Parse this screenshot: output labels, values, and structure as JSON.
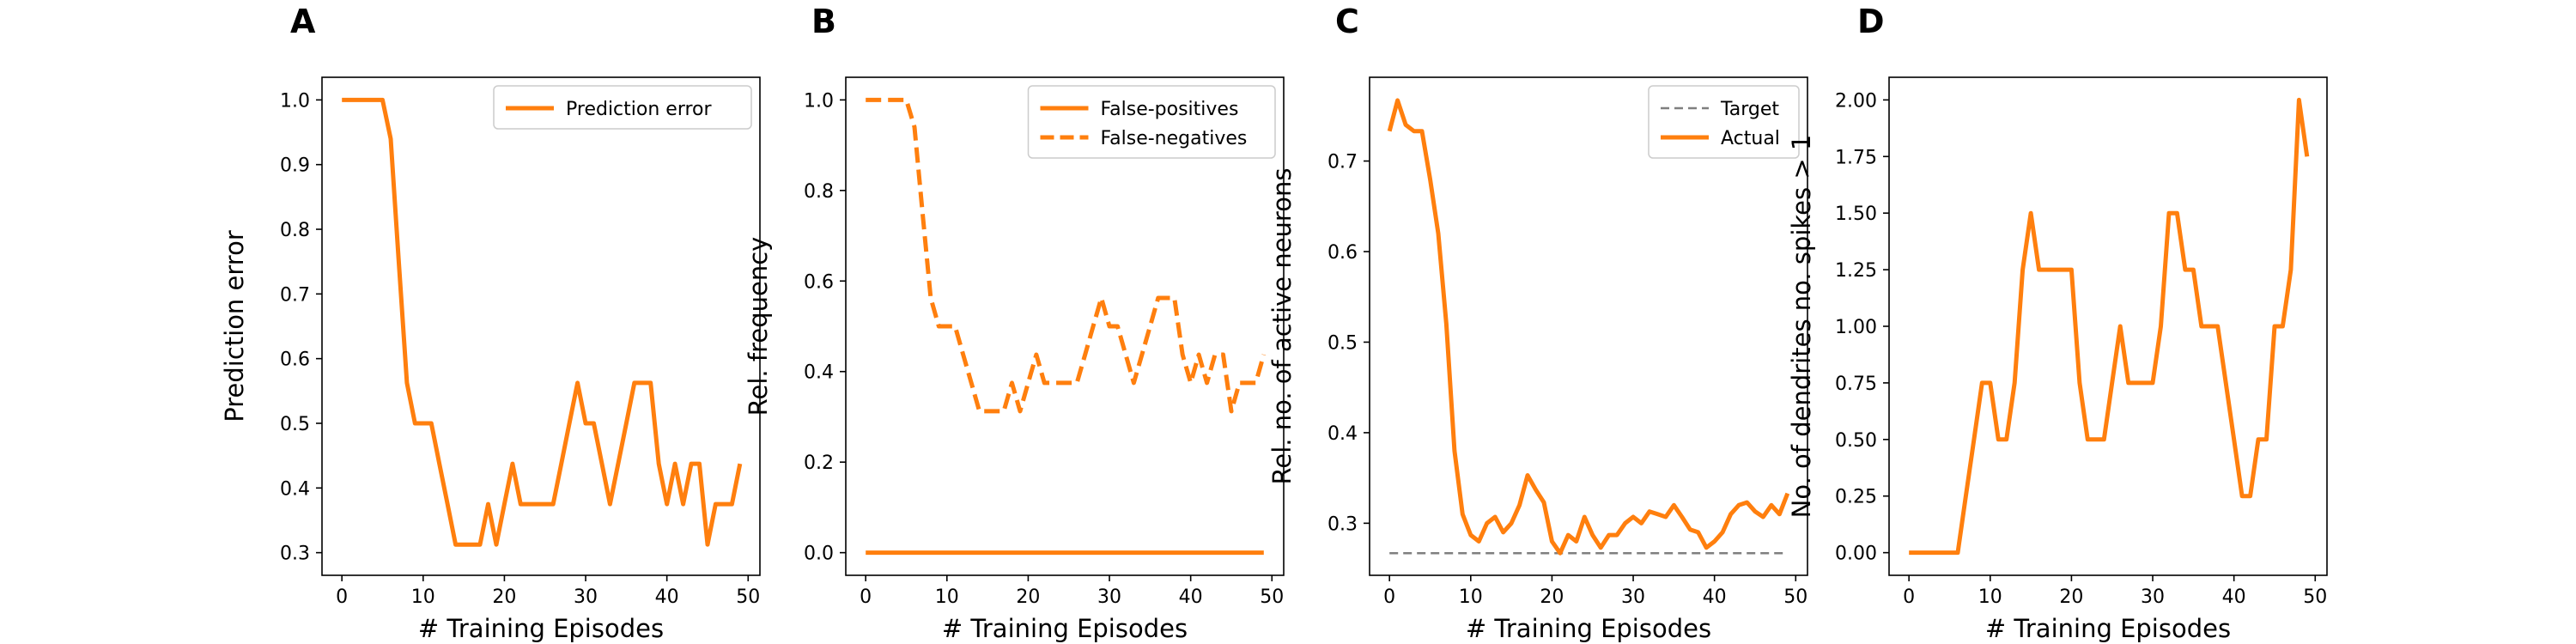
{
  "colors": {
    "series": "#ff7f0e",
    "target": "#7f7f7f"
  },
  "chart_data": [
    {
      "panel": "A",
      "type": "line",
      "xlabel": "# Training Episodes",
      "ylabel": "Prediction error",
      "xlim": [
        -2.45,
        51.45
      ],
      "ylim": [
        0.265,
        1.035
      ],
      "xticks": [
        0,
        10,
        20,
        30,
        40,
        50
      ],
      "yticks": [
        0.3,
        0.4,
        0.5,
        0.6,
        0.7,
        0.8,
        0.9,
        1.0
      ],
      "ytick_labels": [
        "0.3",
        "0.4",
        "0.5",
        "0.6",
        "0.7",
        "0.8",
        "0.9",
        "1.0"
      ],
      "legend_position": "upper right",
      "series": [
        {
          "name": "Prediction error",
          "style": "solid",
          "x": [
            0,
            1,
            2,
            3,
            4,
            5,
            6,
            7,
            8,
            9,
            10,
            11,
            12,
            13,
            14,
            15,
            16,
            17,
            18,
            19,
            20,
            21,
            22,
            23,
            24,
            25,
            26,
            27,
            28,
            29,
            30,
            31,
            32,
            33,
            34,
            35,
            36,
            37,
            38,
            39,
            40,
            41,
            42,
            43,
            44,
            45,
            46,
            47,
            48,
            49
          ],
          "y": [
            1.0,
            1.0,
            1.0,
            1.0,
            1.0,
            1.0,
            0.94,
            0.75,
            0.5625,
            0.5,
            0.5,
            0.5,
            0.4375,
            0.375,
            0.3125,
            0.3125,
            0.3125,
            0.3125,
            0.375,
            0.3125,
            0.375,
            0.4375,
            0.375,
            0.375,
            0.375,
            0.375,
            0.375,
            0.4375,
            0.5,
            0.5625,
            0.5,
            0.5,
            0.4375,
            0.375,
            0.4375,
            0.5,
            0.5625,
            0.5625,
            0.5625,
            0.4375,
            0.375,
            0.4375,
            0.375,
            0.4375,
            0.4375,
            0.3125,
            0.375,
            0.375,
            0.375,
            0.4375
          ]
        }
      ]
    },
    {
      "panel": "B",
      "type": "line",
      "xlabel": "# Training Episodes",
      "ylabel": "Rel. frequency",
      "xlim": [
        -2.45,
        51.45
      ],
      "ylim": [
        -0.05,
        1.05
      ],
      "xticks": [
        0,
        10,
        20,
        30,
        40,
        50
      ],
      "yticks": [
        0.0,
        0.2,
        0.4,
        0.6,
        0.8,
        1.0
      ],
      "ytick_labels": [
        "0.0",
        "0.2",
        "0.4",
        "0.6",
        "0.8",
        "1.0"
      ],
      "legend_position": "upper right",
      "series": [
        {
          "name": "False-positives",
          "style": "solid",
          "x": [
            0,
            1,
            2,
            3,
            4,
            5,
            6,
            7,
            8,
            9,
            10,
            11,
            12,
            13,
            14,
            15,
            16,
            17,
            18,
            19,
            20,
            21,
            22,
            23,
            24,
            25,
            26,
            27,
            28,
            29,
            30,
            31,
            32,
            33,
            34,
            35,
            36,
            37,
            38,
            39,
            40,
            41,
            42,
            43,
            44,
            45,
            46,
            47,
            48,
            49
          ],
          "y": [
            0,
            0,
            0,
            0,
            0,
            0,
            0,
            0,
            0,
            0,
            0,
            0,
            0,
            0,
            0,
            0,
            0,
            0,
            0,
            0,
            0,
            0,
            0,
            0,
            0,
            0,
            0,
            0,
            0,
            0,
            0,
            0,
            0,
            0,
            0,
            0,
            0,
            0,
            0,
            0,
            0,
            0,
            0,
            0,
            0,
            0,
            0,
            0,
            0,
            0
          ]
        },
        {
          "name": "False-negatives",
          "style": "dashed",
          "x": [
            0,
            1,
            2,
            3,
            4,
            5,
            6,
            7,
            8,
            9,
            10,
            11,
            12,
            13,
            14,
            15,
            16,
            17,
            18,
            19,
            20,
            21,
            22,
            23,
            24,
            25,
            26,
            27,
            28,
            29,
            30,
            31,
            32,
            33,
            34,
            35,
            36,
            37,
            38,
            39,
            40,
            41,
            42,
            43,
            44,
            45,
            46,
            47,
            48,
            49
          ],
          "y": [
            1.0,
            1.0,
            1.0,
            1.0,
            1.0,
            1.0,
            0.94,
            0.75,
            0.5625,
            0.5,
            0.5,
            0.5,
            0.4375,
            0.375,
            0.3125,
            0.3125,
            0.3125,
            0.3125,
            0.375,
            0.3125,
            0.375,
            0.4375,
            0.375,
            0.375,
            0.375,
            0.375,
            0.375,
            0.4375,
            0.5,
            0.5625,
            0.5,
            0.5,
            0.4375,
            0.375,
            0.4375,
            0.5,
            0.5625,
            0.5625,
            0.5625,
            0.4375,
            0.375,
            0.4375,
            0.375,
            0.4375,
            0.4375,
            0.3125,
            0.375,
            0.375,
            0.375,
            0.4375
          ]
        }
      ]
    },
    {
      "panel": "C",
      "type": "line",
      "xlabel": "# Training Episodes",
      "ylabel": "Rel. no. of active neurons",
      "xlim": [
        -2.45,
        51.45
      ],
      "ylim": [
        0.2425,
        0.7925
      ],
      "xticks": [
        0,
        10,
        20,
        30,
        40,
        50
      ],
      "yticks": [
        0.3,
        0.4,
        0.5,
        0.6,
        0.7
      ],
      "ytick_labels": [
        "0.3",
        "0.4",
        "0.5",
        "0.6",
        "0.7"
      ],
      "legend_position": "upper right",
      "series": [
        {
          "name": "Target",
          "style": "target",
          "x": [
            0,
            49
          ],
          "y": [
            0.267,
            0.267
          ]
        },
        {
          "name": "Actual",
          "style": "solid",
          "x": [
            0,
            1,
            2,
            3,
            4,
            5,
            6,
            7,
            8,
            9,
            10,
            11,
            12,
            13,
            14,
            15,
            16,
            17,
            18,
            19,
            20,
            21,
            22,
            23,
            24,
            25,
            26,
            27,
            28,
            29,
            30,
            31,
            32,
            33,
            34,
            35,
            36,
            37,
            38,
            39,
            40,
            41,
            42,
            43,
            44,
            45,
            46,
            47,
            48,
            49
          ],
          "y": [
            0.733,
            0.767,
            0.74,
            0.733,
            0.733,
            0.68,
            0.62,
            0.52,
            0.38,
            0.31,
            0.287,
            0.28,
            0.3,
            0.307,
            0.29,
            0.3,
            0.32,
            0.353,
            0.337,
            0.323,
            0.28,
            0.267,
            0.287,
            0.28,
            0.307,
            0.287,
            0.273,
            0.287,
            0.287,
            0.3,
            0.307,
            0.3,
            0.313,
            0.31,
            0.307,
            0.32,
            0.307,
            0.293,
            0.29,
            0.273,
            0.28,
            0.29,
            0.31,
            0.32,
            0.323,
            0.313,
            0.307,
            0.32,
            0.31,
            0.333
          ]
        }
      ]
    },
    {
      "panel": "D",
      "type": "line",
      "xlabel": "# Training Episodes",
      "ylabel": "No. of dendrites no. spikes > 1",
      "xlim": [
        -2.45,
        51.45
      ],
      "ylim": [
        -0.1,
        2.1
      ],
      "xticks": [
        0,
        10,
        20,
        30,
        40,
        50
      ],
      "yticks": [
        0.0,
        0.25,
        0.5,
        0.75,
        1.0,
        1.25,
        1.5,
        1.75,
        2.0
      ],
      "ytick_labels": [
        "0.00",
        "0.25",
        "0.50",
        "0.75",
        "1.00",
        "1.25",
        "1.50",
        "1.75",
        "2.00"
      ],
      "legend_position": "none",
      "series": [
        {
          "name": "",
          "style": "solid",
          "x": [
            0,
            1,
            2,
            3,
            4,
            5,
            6,
            7,
            8,
            9,
            10,
            11,
            12,
            13,
            14,
            15,
            16,
            17,
            18,
            19,
            20,
            21,
            22,
            23,
            24,
            25,
            26,
            27,
            28,
            29,
            30,
            31,
            32,
            33,
            34,
            35,
            36,
            37,
            38,
            39,
            40,
            41,
            42,
            43,
            44,
            45,
            46,
            47,
            48,
            49
          ],
          "y": [
            0,
            0,
            0,
            0,
            0,
            0,
            0,
            0.25,
            0.5,
            0.75,
            0.75,
            0.5,
            0.5,
            0.75,
            1.25,
            1.5,
            1.25,
            1.25,
            1.25,
            1.25,
            1.25,
            0.75,
            0.5,
            0.5,
            0.5,
            0.75,
            1.0,
            0.75,
            0.75,
            0.75,
            0.75,
            1.0,
            1.5,
            1.5,
            1.25,
            1.25,
            1.0,
            1.0,
            1.0,
            0.75,
            0.5,
            0.25,
            0.25,
            0.5,
            0.5,
            1.0,
            1.0,
            1.25,
            2.0,
            1.75
          ]
        }
      ]
    }
  ]
}
